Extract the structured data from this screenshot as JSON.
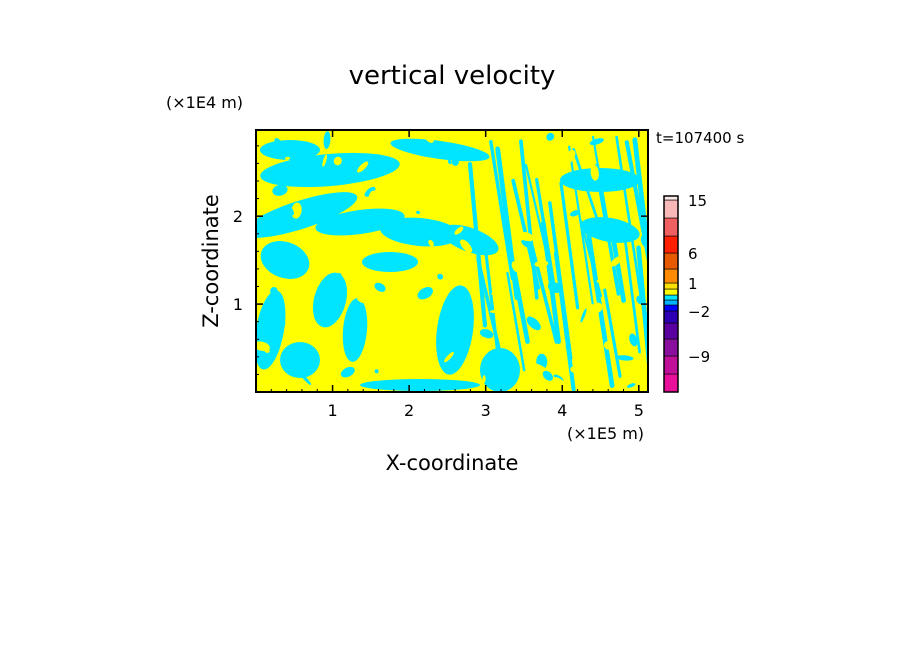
{
  "chart_data": {
    "type": "heatmap",
    "title": "vertical velocity",
    "xlabel": "X-coordinate",
    "ylabel": "Z-coordinate",
    "x_unit": "(×1E5 m)",
    "y_unit": "(×1E4 m)",
    "time_label": "t=107400 s",
    "xlim": [
      0,
      5.12
    ],
    "ylim": [
      0,
      2.98
    ],
    "x_ticks": [
      1,
      2,
      3,
      4,
      5
    ],
    "y_ticks": [
      1,
      2
    ],
    "dominant_fields": {
      "positive_small": {
        "color": "#ffff00",
        "range": [
          0,
          1
        ]
      },
      "negative_small": {
        "color": "#00e5ff",
        "range": [
          -1,
          0
        ]
      }
    },
    "colorbar": {
      "labels": [
        {
          "value": 15,
          "text": "15"
        },
        {
          "value": 6,
          "text": "6"
        },
        {
          "value": 1,
          "text": "1"
        },
        {
          "value": -2,
          "text": "−2"
        },
        {
          "value": -9,
          "text": "−9"
        }
      ],
      "levels": [
        -15,
        -12,
        -9,
        -6,
        -3,
        -2,
        -1,
        -0.5,
        0,
        0.5,
        1,
        3,
        6,
        9,
        12,
        15,
        20
      ],
      "colors": [
        "#e8109a",
        "#c0109a",
        "#8a0f9e",
        "#5a00a0",
        "#2e00b4",
        "#0000ff",
        "#00b4ff",
        "#00e5ff",
        "#ffff00",
        "#ffe100",
        "#ff8c00",
        "#e85a00",
        "#ff2000",
        "#f06060",
        "#f8b8b8",
        "#fde8e8"
      ]
    }
  }
}
